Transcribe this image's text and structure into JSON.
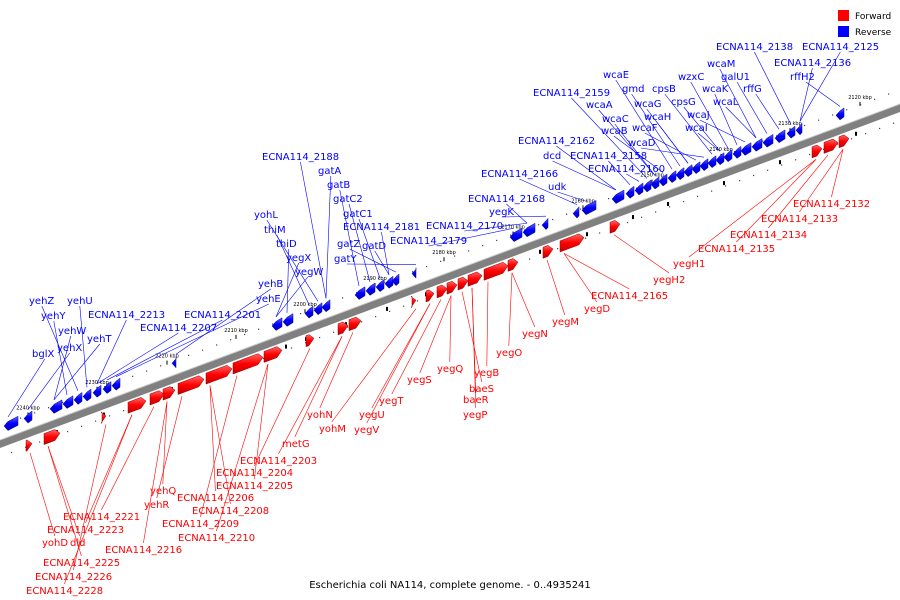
{
  "legend": [
    {
      "label": "Forward",
      "color": "#ff0000"
    },
    {
      "label": "Reverse",
      "color": "#0000ff"
    }
  ],
  "caption": "Escherichia coli NA114, complete genome. - 0..4935241",
  "ticks": [
    "2240 kbp",
    "2230 kbp",
    "2220 kbp",
    "2210 kbp",
    "2200 kbp",
    "2190 kbp",
    "2180 kbp",
    "2170 kbp",
    "2160 kbp",
    "2150 kbp",
    "2140 kbp",
    "2130 kbp",
    "2120 kbp"
  ],
  "reverse_genes": [
    "bglX",
    "yehX",
    "yehT",
    "yehW",
    "yehY",
    "yehZ",
    "yehU",
    "ECNA114_2213",
    "ECNA114_2207",
    "ECNA114_2201",
    "yehE",
    "yehB",
    "yegW",
    "yegX",
    "thiD",
    "thiM",
    "yohL",
    "ECNA114_2188",
    "gatA",
    "gatB",
    "gatC2",
    "gatC1",
    "ECNA114_2181",
    "gatD",
    "gatZ",
    "gatY",
    "ECNA114_2179",
    "ECNA114_2170",
    "ECNA114_2168",
    "yegK",
    "ECNA114_2166",
    "udk",
    "dcd",
    "ECNA114_2162",
    "ECNA114_2158",
    "ECNA114_2160",
    "ECNA114_2159",
    "wcaA",
    "wcaC",
    "wcaB",
    "wcaE",
    "gmd",
    "wcaG",
    "wcaH",
    "wcaF",
    "wcaD",
    "cpsB",
    "cpsG",
    "wcaI",
    "wzxC",
    "wcaK",
    "wcaJ",
    "wcaL",
    "wcaM",
    "galU1",
    "rffG",
    "ECNA114_2138",
    "ECNA114_2136",
    "ECNA114_2125",
    "rffH2"
  ],
  "forward_genes": [
    "yohD",
    "dld",
    "ECNA114_2225",
    "ECNA114_2226",
    "ECNA114_2228",
    "ECNA114_2223",
    "ECNA114_2221",
    "ECNA114_2216",
    "yehQ",
    "yehR",
    "ECNA114_2206",
    "ECNA114_2208",
    "ECNA114_2209",
    "ECNA114_2210",
    "ECNA114_2205",
    "ECNA114_2204",
    "ECNA114_2203",
    "metG",
    "yohN",
    "yohM",
    "yegU",
    "yegV",
    "yegT",
    "yegS",
    "yegQ",
    "baeS",
    "baeR",
    "yegP",
    "yegB",
    "yegO",
    "yegN",
    "yegM",
    "yegD",
    "ECNA114_2165",
    "yegH2",
    "yegH1",
    "ECNA114_2135",
    "ECNA114_2134",
    "ECNA114_2133",
    "ECNA114_2132"
  ]
}
